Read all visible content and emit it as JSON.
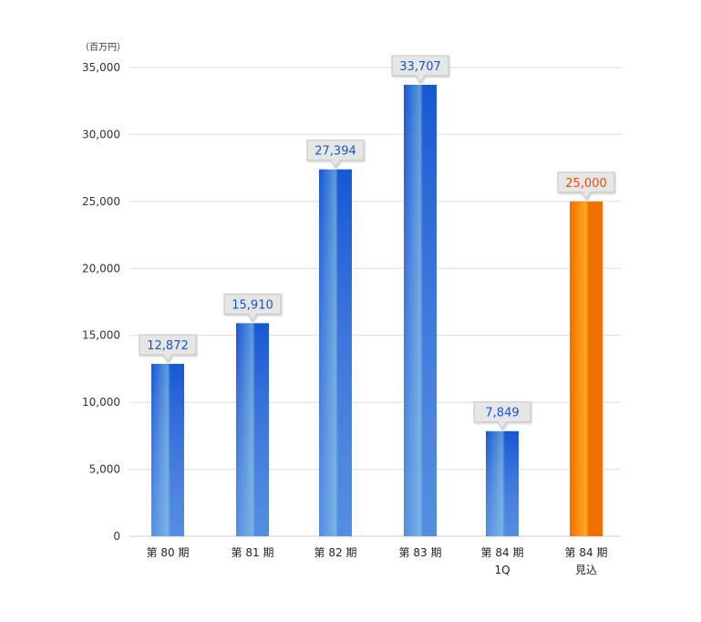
{
  "chart_data": {
    "type": "bar",
    "unit_label": "（百万円）",
    "categories": [
      [
        "第 80 期"
      ],
      [
        "第 81 期"
      ],
      [
        "第 82 期"
      ],
      [
        "第 83 期"
      ],
      [
        "第 84 期",
        "1Q"
      ],
      [
        "第 84 期",
        "見込"
      ]
    ],
    "values": [
      12872,
      15910,
      27394,
      33707,
      7849,
      25000
    ],
    "value_labels": [
      "12,872",
      "15,910",
      "27,394",
      "33,707",
      "7,849",
      "25,000"
    ],
    "bar_styles": [
      "actual",
      "actual",
      "actual",
      "actual",
      "actual",
      "forecast"
    ],
    "ylim": [
      0,
      35000
    ],
    "yticks": [
      0,
      5000,
      10000,
      15000,
      20000,
      25000,
      30000,
      35000
    ],
    "ytick_labels": [
      "0",
      "5,000",
      "10,000",
      "15,000",
      "20,000",
      "25,000",
      "30,000",
      "35,000"
    ],
    "grid": true,
    "colors": {
      "actual_dark": "#1657d6",
      "actual_light": "#5b9bd9",
      "forecast_dark": "#f07000",
      "forecast_light": "#ffa726",
      "actual_text": "#1a56c8",
      "forecast_text": "#e8500a",
      "callout_fill": "#e6e6e6",
      "callout_stroke": "#c4c4c4",
      "grid": "#dddddd",
      "axis": "#cfcfcf"
    }
  }
}
